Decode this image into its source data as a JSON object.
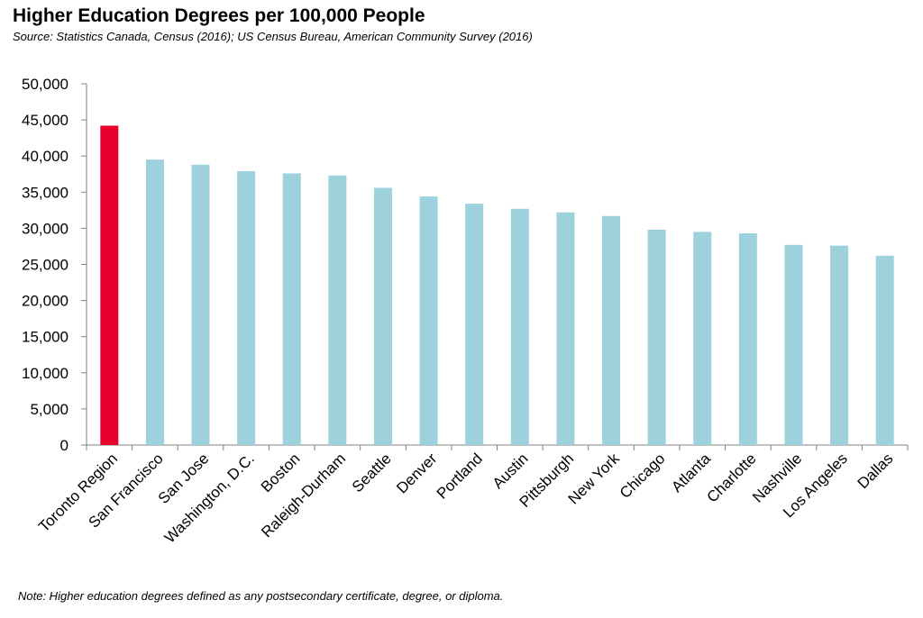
{
  "title": "Higher Education Degrees per 100,000 People",
  "subtitle": "Source: Statistics Canada, Census (2016); US Census Bureau, American Community Survey (2016)",
  "note": "Note: Higher education degrees defined as any postsecondary certificate, degree, or diploma.",
  "colors": {
    "highlight": "#e8002d",
    "default": "#9dd1dc",
    "axis": "#808080"
  },
  "chart_data": {
    "type": "bar",
    "categories": [
      "Toronto Region",
      "San Francisco",
      "San Jose",
      "Washington, D.C.",
      "Boston",
      "Raleigh-Durham",
      "Seattle",
      "Denver",
      "Portland",
      "Austin",
      "Pittsburgh",
      "New York",
      "Chicago",
      "Atlanta",
      "Charlotte",
      "Nashville",
      "Los Angeles",
      "Dallas"
    ],
    "values": [
      44200,
      39500,
      38800,
      37900,
      37600,
      37300,
      35600,
      34400,
      33400,
      32700,
      32200,
      31700,
      29800,
      29500,
      29300,
      27700,
      27600,
      26200
    ],
    "highlight_index": 0,
    "ylim": [
      0,
      50000
    ],
    "yticks": [
      0,
      5000,
      10000,
      15000,
      20000,
      25000,
      30000,
      35000,
      40000,
      45000,
      50000
    ],
    "ytick_labels": [
      "0",
      "5,000",
      "10,000",
      "15,000",
      "20,000",
      "25,000",
      "30,000",
      "35,000",
      "40,000",
      "45,000",
      "50,000"
    ],
    "xlabel": "",
    "ylabel": "",
    "grid": false,
    "legend": "none"
  }
}
